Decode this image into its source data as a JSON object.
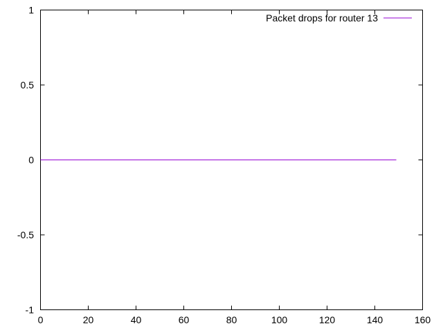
{
  "chart_data": {
    "type": "line",
    "title": "",
    "xlabel": "",
    "ylabel": "",
    "xlim": [
      0,
      160
    ],
    "ylim": [
      -1,
      1
    ],
    "xticks": [
      0,
      20,
      40,
      60,
      80,
      100,
      120,
      140,
      160
    ],
    "yticks": [
      -1,
      -0.5,
      0,
      0.5,
      1
    ],
    "xtick_labels": [
      "0",
      "20",
      "40",
      "60",
      "80",
      "100",
      "120",
      "140",
      "160"
    ],
    "ytick_labels": [
      "-1",
      "-0.5",
      "0",
      "0.5",
      "1"
    ],
    "grid": false,
    "legend_position": "top-right",
    "series": [
      {
        "name": "Packet drops for router 13",
        "color": "#9400d3",
        "x": [
          0,
          149
        ],
        "y": [
          0,
          0
        ]
      }
    ]
  }
}
